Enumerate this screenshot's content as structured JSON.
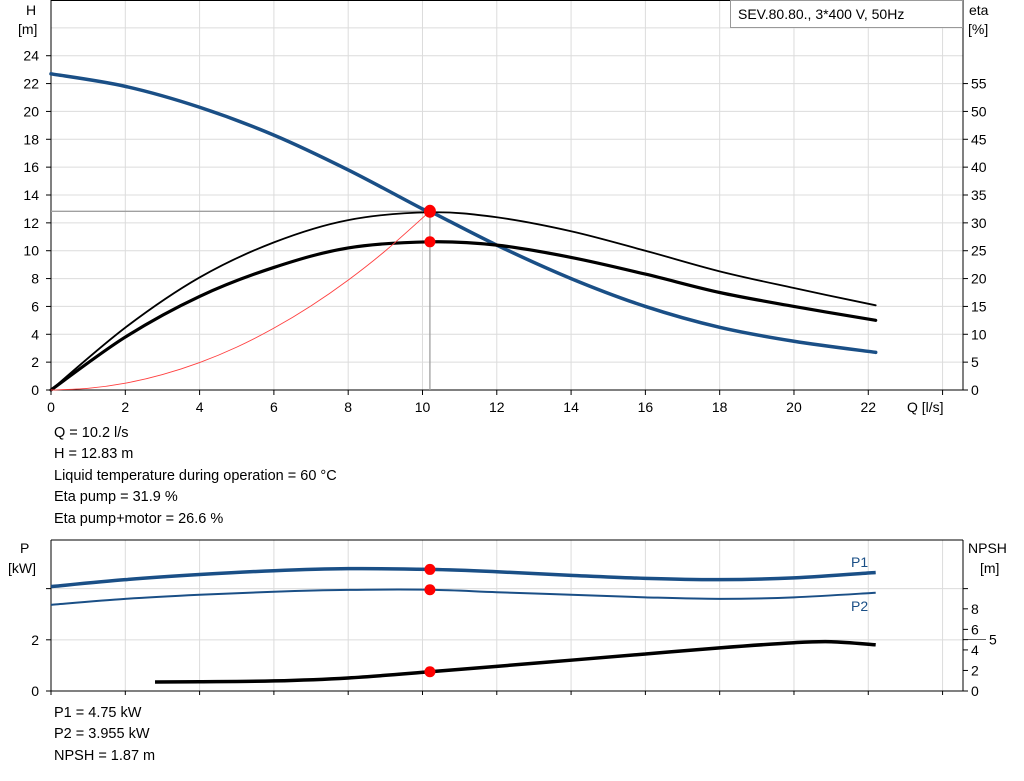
{
  "chart_data": [
    {
      "type": "line",
      "legend_box": "SEV.80.80., 3*400 V, 50Hz",
      "xlabel": "Q [l/s]",
      "ylabel_left": [
        "H",
        "[m]"
      ],
      "ylabel_right": [
        "eta",
        "[%]"
      ],
      "xlim": [
        0,
        24.5
      ],
      "ylim_left": [
        0,
        28
      ],
      "ylim_right": [
        0,
        70
      ],
      "xticks": [
        0,
        2,
        4,
        6,
        8,
        10,
        12,
        14,
        16,
        18,
        20,
        22
      ],
      "yticks_left": [
        0,
        2,
        4,
        6,
        8,
        10,
        12,
        14,
        16,
        18,
        20,
        22,
        24
      ],
      "yticks_right": [
        0,
        5,
        10,
        15,
        20,
        25,
        30,
        35,
        40,
        45,
        50,
        55
      ],
      "grid": true,
      "colors": {
        "head": "#1a4f86",
        "eta": "#000000",
        "system": "#ff4040",
        "point": "#ff0000",
        "crosshair": "#a0a0a0"
      },
      "series": [
        {
          "key": "head",
          "axis": "left",
          "x": [
            0,
            2,
            4,
            6,
            8,
            10,
            10.2,
            12,
            14,
            16,
            18,
            20,
            22.2
          ],
          "y": [
            22.7,
            21.8,
            20.3,
            18.3,
            15.8,
            13.0,
            12.83,
            10.4,
            8.0,
            6.0,
            4.5,
            3.5,
            2.7
          ]
        },
        {
          "key": "eta_pump",
          "axis": "right",
          "x": [
            0,
            2,
            4,
            6,
            8,
            10.2,
            12,
            14,
            16,
            18,
            20,
            22.2
          ],
          "y": [
            0,
            11.2,
            20.2,
            26.5,
            30.5,
            31.9,
            31.0,
            28.5,
            25.0,
            21.3,
            18.3,
            15.2
          ]
        },
        {
          "key": "eta_pump_motor",
          "axis": "right",
          "x": [
            0,
            2,
            4,
            6,
            8,
            10.2,
            12,
            14,
            16,
            18,
            20,
            22.2
          ],
          "y": [
            0,
            9.5,
            16.8,
            22.0,
            25.5,
            26.6,
            26.0,
            23.8,
            20.8,
            17.5,
            15.0,
            12.5
          ]
        },
        {
          "key": "system",
          "axis": "left",
          "x": [
            0,
            1,
            2,
            3,
            4,
            5,
            6,
            7,
            8,
            9,
            10.2
          ],
          "y": [
            0,
            0.12,
            0.49,
            1.11,
            1.97,
            3.08,
            4.44,
            6.04,
            7.89,
            9.99,
            12.83
          ]
        }
      ],
      "duty_point": {
        "Q": 10.2,
        "H": 12.83,
        "eta_pump": 31.9,
        "eta_pump_motor": 26.6
      }
    },
    {
      "type": "line",
      "ylabel_left": [
        "P",
        "[kW]"
      ],
      "ylabel_right": [
        "NPSH",
        "[m]"
      ],
      "xlim": [
        0,
        24.5
      ],
      "ylim_left": [
        0,
        5.9
      ],
      "ylim_right": [
        0,
        14.7
      ],
      "yticks_left": [
        0,
        2
      ],
      "yticks_right": [
        0,
        2,
        4,
        5,
        6,
        8
      ],
      "grid": true,
      "colors": {
        "P1": "#1a4f86",
        "P2": "#1a4f86",
        "NPSH": "#000000",
        "point": "#ff0000"
      },
      "series": [
        {
          "name": "P1",
          "axis": "left",
          "x": [
            0,
            2,
            4,
            6,
            8,
            10.2,
            12,
            14,
            16,
            18,
            20,
            22.2
          ],
          "y": [
            4.08,
            4.35,
            4.55,
            4.7,
            4.78,
            4.75,
            4.66,
            4.52,
            4.4,
            4.35,
            4.42,
            4.63
          ]
        },
        {
          "name": "P2",
          "axis": "left",
          "x": [
            0,
            2,
            4,
            6,
            8,
            10.2,
            12,
            14,
            16,
            18,
            20,
            22.2
          ],
          "y": [
            3.37,
            3.6,
            3.76,
            3.88,
            3.95,
            3.955,
            3.86,
            3.76,
            3.66,
            3.6,
            3.66,
            3.84
          ]
        },
        {
          "name": "NPSH",
          "axis": "right",
          "x": [
            2.8,
            4,
            6,
            8,
            10.2,
            12,
            14,
            16,
            18,
            20,
            21,
            22.2
          ],
          "y": [
            0.88,
            0.9,
            0.98,
            1.27,
            1.87,
            2.4,
            3.0,
            3.6,
            4.2,
            4.7,
            4.8,
            4.5
          ]
        }
      ],
      "duty_point": {
        "Q": 10.2,
        "P1": 4.75,
        "P2": 3.955,
        "NPSH": 1.87
      }
    }
  ],
  "readout_top": [
    "Q = 10.2 l/s",
    "H = 12.83 m",
    "Liquid temperature during operation = 60 °C",
    "Eta pump = 31.9 %",
    "Eta pump+motor = 26.6 %"
  ],
  "readout_bottom": [
    "P1 = 4.75 kW",
    "P2 = 3.955 kW",
    "NPSH = 1.87 m"
  ]
}
